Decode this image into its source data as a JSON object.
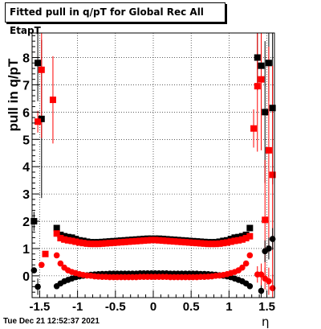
{
  "chart_data": {
    "type": "scatter",
    "title": "Fitted pull in q/pT for Global Rec All EtapT",
    "xlabel": "η",
    "ylabel": "pull in q/pT",
    "xlim": [
      -1.6,
      1.6
    ],
    "ylim": [
      -0.8,
      8.9
    ],
    "grid": true,
    "x_ticks": [
      -1.5,
      -1,
      -0.5,
      0,
      0.5,
      1,
      1.5
    ],
    "x_tick_labels": [
      "-1.5",
      "-1",
      "-0.5",
      "0",
      "0.5",
      "1",
      "1.5"
    ],
    "y_ticks": [
      0,
      1,
      2,
      3,
      4,
      5,
      6,
      7,
      8
    ],
    "y_tick_labels": [
      "0",
      "1",
      "2",
      "3",
      "4",
      "5",
      "6",
      "7",
      "8"
    ],
    "series": [
      {
        "color": "#000000",
        "marker": "square",
        "x": [
          -1.575,
          -1.525,
          -1.475,
          -1.275,
          -1.225,
          -1.175,
          -1.125,
          -1.075,
          -1.025,
          -0.975,
          -0.925,
          -0.875,
          -0.825,
          -0.775,
          -0.725,
          -0.675,
          -0.625,
          -0.575,
          -0.525,
          -0.475,
          -0.425,
          -0.375,
          -0.325,
          -0.275,
          -0.225,
          -0.175,
          -0.125,
          -0.075,
          -0.025,
          0.025,
          0.075,
          0.125,
          0.175,
          0.225,
          0.275,
          0.325,
          0.375,
          0.425,
          0.475,
          0.525,
          0.575,
          0.625,
          0.675,
          0.725,
          0.775,
          0.825,
          0.875,
          0.925,
          0.975,
          1.025,
          1.075,
          1.125,
          1.175,
          1.225,
          1.275,
          1.375,
          1.425,
          1.475,
          1.525,
          1.575
        ],
        "y": [
          2.0,
          7.8,
          5.75,
          1.75,
          1.5,
          1.45,
          1.42,
          1.4,
          1.35,
          1.3,
          1.28,
          1.25,
          1.23,
          1.23,
          1.23,
          1.24,
          1.25,
          1.26,
          1.27,
          1.28,
          1.29,
          1.3,
          1.31,
          1.32,
          1.33,
          1.34,
          1.35,
          1.36,
          1.36,
          1.36,
          1.36,
          1.35,
          1.34,
          1.33,
          1.32,
          1.31,
          1.3,
          1.29,
          1.28,
          1.27,
          1.26,
          1.25,
          1.24,
          1.23,
          1.23,
          1.23,
          1.25,
          1.28,
          1.3,
          1.35,
          1.4,
          1.42,
          1.45,
          1.5,
          1.75,
          8.0,
          7.7,
          6.0,
          7.8,
          6.15
        ],
        "err": [
          0.35,
          1.4,
          2.9,
          0,
          0,
          0,
          0,
          0,
          0,
          0,
          0,
          0,
          0,
          0,
          0,
          0,
          0,
          0,
          0,
          0,
          0,
          0,
          0,
          0,
          0,
          0,
          0,
          0,
          0,
          0,
          0,
          0,
          0,
          0,
          0,
          0,
          0,
          0,
          0,
          0,
          0,
          0,
          0,
          0,
          0,
          0,
          0,
          0,
          0,
          0,
          0,
          0,
          0,
          0,
          0,
          1.2,
          1.2,
          2.6,
          1.4,
          2.8
        ]
      },
      {
        "color": "#ff0000",
        "marker": "square",
        "x": [
          -1.525,
          -1.475,
          -1.425,
          -1.325,
          -1.275,
          -1.225,
          -1.175,
          -1.125,
          -1.075,
          -1.025,
          -0.975,
          -0.925,
          -0.875,
          -0.825,
          -0.775,
          -0.725,
          -0.675,
          -0.625,
          -0.575,
          -0.525,
          -0.475,
          -0.425,
          -0.375,
          -0.325,
          -0.275,
          -0.225,
          -0.175,
          -0.125,
          -0.075,
          -0.025,
          0.025,
          0.075,
          0.125,
          0.175,
          0.225,
          0.275,
          0.325,
          0.375,
          0.425,
          0.475,
          0.525,
          0.575,
          0.625,
          0.675,
          0.725,
          0.775,
          0.825,
          0.875,
          0.925,
          0.975,
          1.025,
          1.075,
          1.125,
          1.175,
          1.225,
          1.275,
          1.325,
          1.375,
          1.425,
          1.475,
          1.525,
          1.575
        ],
        "y": [
          5.65,
          7.55,
          0.8,
          6.45,
          1.55,
          1.38,
          1.33,
          1.3,
          1.28,
          1.25,
          1.22,
          1.2,
          1.18,
          1.17,
          1.17,
          1.17,
          1.18,
          1.19,
          1.2,
          1.21,
          1.22,
          1.23,
          1.24,
          1.25,
          1.26,
          1.27,
          1.28,
          1.29,
          1.3,
          1.31,
          1.31,
          1.3,
          1.29,
          1.28,
          1.27,
          1.26,
          1.25,
          1.24,
          1.23,
          1.22,
          1.21,
          1.2,
          1.19,
          1.18,
          1.17,
          1.17,
          1.17,
          1.18,
          1.2,
          1.22,
          1.25,
          1.28,
          1.3,
          1.33,
          1.38,
          1.45,
          5.4,
          6.95,
          7.2,
          2.05,
          4.6,
          3.7
        ],
        "err": [
          0.4,
          2.5,
          0,
          1.6,
          0,
          0,
          0,
          0,
          0,
          0,
          0,
          0,
          0,
          0,
          0,
          0,
          0,
          0,
          0,
          0,
          0,
          0,
          0,
          0,
          0,
          0,
          0,
          0,
          0,
          0,
          0,
          0,
          0,
          0,
          0,
          0,
          0,
          0,
          0,
          0,
          0,
          0,
          0,
          0,
          0,
          0,
          0,
          0,
          0,
          0,
          0,
          0,
          0,
          0,
          0,
          0,
          0.7,
          2.4,
          2.6,
          2.2,
          3.8,
          4.0
        ]
      },
      {
        "color": "#000000",
        "marker": "circle",
        "x": [
          -1.575,
          -1.525,
          -1.275,
          -1.225,
          -1.175,
          -1.125,
          -1.075,
          -1.025,
          -0.975,
          -0.925,
          -0.875,
          -0.825,
          -0.775,
          -0.725,
          -0.675,
          -0.625,
          -0.575,
          -0.525,
          -0.475,
          -0.425,
          -0.375,
          -0.325,
          -0.275,
          -0.225,
          -0.175,
          -0.125,
          -0.075,
          -0.025,
          0.025,
          0.075,
          0.125,
          0.175,
          0.225,
          0.275,
          0.325,
          0.375,
          0.425,
          0.475,
          0.525,
          0.575,
          0.625,
          0.675,
          0.725,
          0.775,
          0.825,
          0.875,
          0.925,
          0.975,
          1.025,
          1.075,
          1.125,
          1.175,
          1.225,
          1.275,
          1.425,
          1.475,
          1.525,
          1.575
        ],
        "y": [
          0.2,
          -0.4,
          -0.38,
          -0.28,
          -0.2,
          -0.15,
          -0.1,
          -0.05,
          -0.02,
          0.0,
          0.02,
          0.04,
          0.05,
          0.06,
          0.07,
          0.07,
          0.08,
          0.08,
          0.08,
          0.08,
          0.08,
          0.08,
          0.08,
          0.08,
          0.09,
          0.09,
          0.09,
          0.09,
          0.09,
          0.09,
          0.09,
          0.09,
          0.08,
          0.08,
          0.08,
          0.08,
          0.08,
          0.08,
          0.08,
          0.08,
          0.07,
          0.07,
          0.06,
          0.05,
          0.04,
          0.02,
          0.0,
          -0.02,
          -0.05,
          -0.1,
          -0.15,
          -0.2,
          -0.28,
          -0.38,
          -0.55,
          0.9,
          1.0,
          1.35
        ],
        "err": [
          0,
          0.3,
          0,
          0,
          0,
          0,
          0,
          0,
          0,
          0,
          0,
          0,
          0,
          0,
          0,
          0,
          0,
          0,
          0,
          0,
          0,
          0,
          0,
          0,
          0,
          0,
          0,
          0,
          0,
          0,
          0,
          0,
          0,
          0,
          0,
          0,
          0,
          0,
          0,
          0,
          0,
          0,
          0,
          0,
          0,
          0,
          0,
          0,
          0,
          0,
          0,
          0,
          0,
          0,
          0.3,
          0.4,
          0.4,
          0.4
        ]
      },
      {
        "color": "#ff0000",
        "marker": "circle",
        "x": [
          -1.475,
          -1.275,
          -1.225,
          -1.175,
          -1.125,
          -1.075,
          -1.025,
          -0.975,
          -0.925,
          -0.875,
          -0.825,
          -0.775,
          -0.725,
          -0.675,
          -0.625,
          -0.575,
          -0.525,
          -0.475,
          -0.425,
          -0.375,
          -0.325,
          -0.275,
          -0.225,
          -0.175,
          -0.125,
          -0.075,
          -0.025,
          0.025,
          0.075,
          0.125,
          0.175,
          0.225,
          0.275,
          0.325,
          0.375,
          0.425,
          0.475,
          0.525,
          0.575,
          0.625,
          0.675,
          0.725,
          0.775,
          0.825,
          0.875,
          0.925,
          0.975,
          1.025,
          1.075,
          1.125,
          1.175,
          1.225,
          1.275,
          1.375,
          1.425,
          1.475,
          1.525,
          1.575
        ],
        "y": [
          0.4,
          0.75,
          0.45,
          0.3,
          0.2,
          0.14,
          0.1,
          0.06,
          0.03,
          0.01,
          0.0,
          -0.02,
          -0.03,
          -0.04,
          -0.04,
          -0.05,
          -0.05,
          -0.05,
          -0.05,
          -0.05,
          -0.05,
          -0.05,
          -0.05,
          -0.04,
          -0.04,
          -0.04,
          -0.04,
          -0.04,
          -0.04,
          -0.04,
          -0.04,
          -0.05,
          -0.05,
          -0.05,
          -0.05,
          -0.05,
          -0.05,
          -0.05,
          -0.05,
          -0.04,
          -0.04,
          -0.03,
          -0.02,
          0.0,
          0.01,
          0.03,
          0.06,
          0.1,
          0.14,
          0.2,
          0.3,
          0.45,
          0.75,
          0.05,
          0.05,
          -0.1,
          -0.2,
          -0.45
        ],
        "err": [
          0,
          0,
          0,
          0,
          0,
          0,
          0,
          0,
          0,
          0,
          0,
          0,
          0,
          0,
          0,
          0,
          0,
          0,
          0,
          0,
          0,
          0,
          0,
          0,
          0,
          0,
          0,
          0,
          0,
          0,
          0,
          0,
          0,
          0,
          0,
          0,
          0,
          0,
          0,
          0,
          0,
          0,
          0,
          0,
          0,
          0,
          0,
          0,
          0,
          0,
          0,
          0,
          0,
          0.3,
          0.4,
          0.4,
          0.5,
          0.5
        ]
      }
    ]
  },
  "timestamp": "Tue Dec 21 12:52:37 2021"
}
